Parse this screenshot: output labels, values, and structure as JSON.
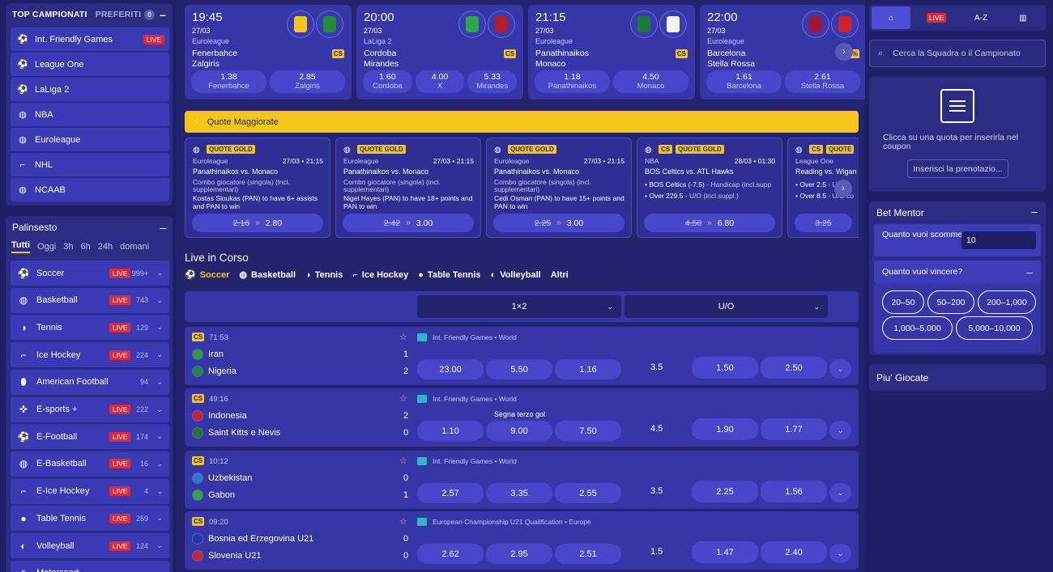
{
  "top_campionati": {
    "title": "TOP CAMPIONATI",
    "preferiti": "PREFERITI",
    "preferiti_count": "0",
    "collapse": "–",
    "items": [
      {
        "label": "Int. Friendly Games",
        "icon": "soccer-ball-icon",
        "badge": "LIVE"
      },
      {
        "label": "League One",
        "icon": "soccer-ball-icon"
      },
      {
        "label": "LaLiga 2",
        "icon": "soccer-ball-icon"
      },
      {
        "label": "NBA",
        "icon": "basketball-icon"
      },
      {
        "label": "Euroleague",
        "icon": "basketball-icon"
      },
      {
        "label": "NHL",
        "icon": "hockey-stick-icon"
      },
      {
        "label": "NCAAB",
        "icon": "basketball-icon"
      }
    ]
  },
  "palinsesto": {
    "title": "Palinsesto",
    "collapse": "–",
    "tabs": [
      "Tutti",
      "Oggi",
      "3h",
      "6h",
      "24h",
      "domani"
    ],
    "active_tab": "Tutti",
    "sports": [
      {
        "label": "Soccer",
        "live": "LIVE",
        "count": "999+",
        "icon": "soccer-ball-icon"
      },
      {
        "label": "Basketball",
        "live": "LIVE",
        "count": "743",
        "icon": "basketball-icon"
      },
      {
        "label": "Tennis",
        "live": "LIVE",
        "count": "129",
        "icon": "tennis-ball-icon"
      },
      {
        "label": "Ice Hockey",
        "live": "LIVE",
        "count": "224",
        "icon": "hockey-stick-icon"
      },
      {
        "label": "American Football",
        "live": "",
        "count": "94",
        "icon": "american-football-icon"
      },
      {
        "label": "E-sports +",
        "live": "LIVE",
        "count": "222",
        "icon": "gamepad-icon"
      },
      {
        "label": "E-Football",
        "live": "LIVE",
        "count": "174",
        "icon": "soccer-ball-icon"
      },
      {
        "label": "E-Basketball",
        "live": "LIVE",
        "count": "16",
        "icon": "basketball-icon"
      },
      {
        "label": "E-Ice Hockey",
        "live": "LIVE",
        "count": "4",
        "icon": "hockey-stick-icon"
      },
      {
        "label": "Table Tennis",
        "live": "LIVE",
        "count": "259",
        "icon": "ping-pong-icon"
      },
      {
        "label": "Volleyball",
        "live": "LIVE",
        "count": "124",
        "icon": "volleyball-icon"
      },
      {
        "label": "Motorsport",
        "live": "",
        "count": "",
        "icon": "motorsport-icon"
      }
    ]
  },
  "top_matches": [
    {
      "time": "19:45",
      "date": "27/03",
      "league": "Euroleague",
      "team1": "Fenerbahce",
      "team2": "Zalgiris",
      "cs": "CS",
      "j1": "#f5c518",
      "j2": "#1f8f3a",
      "odds": [
        {
          "v": "1.38",
          "l": "Fenerbahce"
        },
        {
          "v": "2.85",
          "l": "Zalgiris"
        }
      ]
    },
    {
      "time": "20:00",
      "date": "27/03",
      "league": "LaLiga 2",
      "team1": "Cordoba",
      "team2": "Mirandes",
      "cs": "CS",
      "j1": "#2aa84a",
      "j2": "#b01e2a",
      "odds": [
        {
          "v": "1.60",
          "l": "Cordoba"
        },
        {
          "v": "4.00",
          "l": "X"
        },
        {
          "v": "5.33",
          "l": "Mirandes"
        }
      ]
    },
    {
      "time": "21:15",
      "date": "27/03",
      "league": "Euroleague",
      "team1": "Panathinaikos",
      "team2": "Monaco",
      "cs": "CS",
      "j1": "#1a7a3a",
      "j2": "#f2f2f2",
      "odds": [
        {
          "v": "1.18",
          "l": "Panathinaikos"
        },
        {
          "v": "4.50",
          "l": "Monaco"
        }
      ]
    },
    {
      "time": "22:00",
      "date": "27/03",
      "league": "Euroleague",
      "team1": "Barcelona",
      "team2": "Stella Rossa",
      "cs": "0%",
      "j1": "#a0163a",
      "j2": "#d0202a",
      "odds": [
        {
          "v": "1.61",
          "l": "Barcelona"
        },
        {
          "v": "2.61",
          "l": "Stella Rossa"
        }
      ]
    }
  ],
  "boost_banner": "Quote Maggiorate",
  "boost_cards": [
    {
      "gold": "QUOTE GOLD",
      "cs": "",
      "league": "Euroleague",
      "datetime": "27/03 • 21:15",
      "match": "Panathinaikos vs. Monaco",
      "combo": "Combo giocatore (singola) (incl. supplementari)",
      "desc": "Kostas Sloukas (PAN) to have 6+ assists and PAN to win",
      "old": "2.16",
      "new": "2.80"
    },
    {
      "gold": "QUOTE GOLD",
      "cs": "",
      "league": "Euroleague",
      "datetime": "27/03 • 21:15",
      "match": "Panathinaikos vs. Monaco",
      "combo": "Combo giocatore (singola) (incl. supplementari)",
      "desc": "Nigel Hayes (PAN) to have 18+ points and PAN to win",
      "old": "2.42",
      "new": "3.00"
    },
    {
      "gold": "QUOTE GOLD",
      "cs": "",
      "league": "Euroleague",
      "datetime": "27/03 • 21:15",
      "match": "Panathinaikos vs. Monaco",
      "combo": "Combo giocatore (singola) (incl. supplementari)",
      "desc": "Cedi Osman (PAN) to have 15+ points and PAN to win",
      "old": "2.25",
      "new": "3.00"
    },
    {
      "gold": "QUOTE GOLD",
      "cs": "CS",
      "league": "NBA",
      "datetime": "28/03 • 01:30",
      "match": "BOS Celtics vs. ATL Hawks",
      "leg1": "BOS Celtics (-7.5)",
      "leg1b": " - Handicap (incl.supp",
      "leg2": "Over 229.5",
      "leg2b": " - U/O (incl.suppl.)",
      "old": "4.50",
      "new": "6.80"
    },
    {
      "gold": "QUOTE",
      "cs": "CS",
      "league": "League One",
      "datetime": "",
      "match": "Reading vs. Wigan",
      "leg1": "Over 2.5",
      "leg1b": " - U/O",
      "leg2": "Over 8.5",
      "leg2b": " - U/O co",
      "old": "3.25",
      "new": ""
    }
  ],
  "live": {
    "title": "Live in Corso",
    "tabs": [
      {
        "label": "Soccer",
        "icon": "soccer-ball-icon"
      },
      {
        "label": "Basketball",
        "icon": "basketball-icon"
      },
      {
        "label": "Tennis",
        "icon": "tennis-ball-icon"
      },
      {
        "label": "Ice Hockey",
        "icon": "hockey-stick-icon"
      },
      {
        "label": "Table Tennis",
        "icon": "ping-pong-icon"
      },
      {
        "label": "Volleyball",
        "icon": "volleyball-icon"
      },
      {
        "label": "Altri",
        "icon": ""
      }
    ],
    "market1": "1×2",
    "market2": "U/O",
    "matches": [
      {
        "cs": "CS",
        "clock": "71:53",
        "comp": "Int. Friendly Games • World",
        "team1": "Iran",
        "team2": "Nigeria",
        "s1": "1",
        "s2": "2",
        "extra": "",
        "o1": "23.00",
        "ox": "5.50",
        "o2": "1.16",
        "line": "3.5",
        "over": "1.50",
        "under": "2.50",
        "f1": "#2a9a3a",
        "f2": "#1a8a3a"
      },
      {
        "cs": "CS",
        "clock": "49:16",
        "comp": "Int. Friendly Games • World",
        "team1": "Indonesia",
        "team2": "Saint Kitts e Nevis",
        "s1": "2",
        "s2": "0",
        "extra": "Segna terzo gol",
        "o1": "1.10",
        "ox": "9.00",
        "o2": "7.50",
        "line": "4.5",
        "over": "1.90",
        "under": "1.77",
        "f1": "#d0202a",
        "f2": "#1a7a2a"
      },
      {
        "cs": "CS",
        "clock": "10:12",
        "comp": "Int. Friendly Games • World",
        "team1": "Uzbekistan",
        "team2": "Gabon",
        "s1": "0",
        "s2": "1",
        "extra": "",
        "o1": "2.57",
        "ox": "3.35",
        "o2": "2.55",
        "line": "3.5",
        "over": "2.25",
        "under": "1.56",
        "f1": "#2a7ac8",
        "f2": "#2aa83a"
      },
      {
        "cs": "CS",
        "clock": "09:20",
        "comp": "European Championship U21 Qualification • Europe",
        "team1": "Bosnia ed Erzegovina U21",
        "team2": "Slovenia U21",
        "s1": "0",
        "s2": "0",
        "extra": "",
        "o1": "2.62",
        "ox": "2.95",
        "o2": "2.51",
        "line": "1.5",
        "over": "1.47",
        "under": "2.40",
        "f1": "#1a3aa8",
        "f2": "#d0202a"
      }
    ]
  },
  "right": {
    "nav": [
      {
        "label": "",
        "icon": "home-icon"
      },
      {
        "label": "LIVE",
        "icon": ""
      },
      {
        "label": "A-Z",
        "icon": "sort-az-icon"
      },
      {
        "label": "",
        "icon": "stats-icon"
      }
    ],
    "search_placeholder": "Cerca la Squadra o il Campionato",
    "coupon_text": "Clicca su una quota per inserirla nel coupon",
    "coupon_button": "Inserisci la prenotazio...",
    "mentor_title": "Bet Mentor",
    "mentor_collapse": "–",
    "q1_label": "Quanto vuoi scommettere?",
    "q1_value": "10",
    "q2_label": "Quanto vuoi vincere?",
    "q2_collapse": "–",
    "chips": [
      "20–50",
      "50–200",
      "200–1,000",
      "1,000–5,000",
      "5,000–10,000"
    ],
    "piu_giocate": "Piu' Giocate"
  }
}
